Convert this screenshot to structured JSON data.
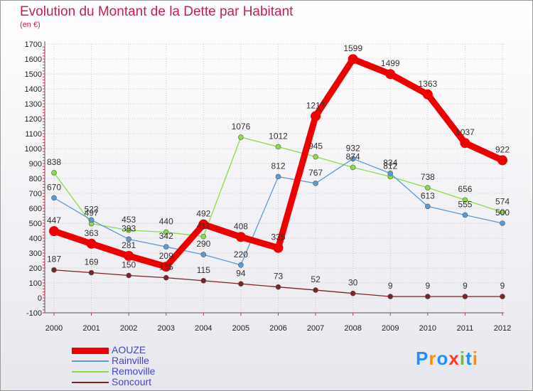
{
  "chart_data": {
    "type": "line",
    "title": "Evolution du Montant de la Dette par Habitant",
    "subtitle": "(en €)",
    "x": [
      "2000",
      "2001",
      "2002",
      "2003",
      "2004",
      "2005",
      "2006",
      "2007",
      "2008",
      "2009",
      "2010",
      "2011",
      "2012"
    ],
    "ylim": [
      -100,
      1700
    ],
    "yticks": [
      "-100",
      "0",
      "100",
      "200",
      "300",
      "400",
      "500",
      "600",
      "700",
      "800",
      "900",
      "1000",
      "1100",
      "1200",
      "1300",
      "1400",
      "1500",
      "1600",
      "1700"
    ],
    "grid": true,
    "legend_position": "bottom-left",
    "series": [
      {
        "name": "AOUZE",
        "color": "#ee0000",
        "values": [
          447,
          363,
          281,
          209,
          492,
          408,
          335,
          1217,
          1599,
          1499,
          1363,
          1037,
          922
        ],
        "labels": [
          "447",
          "363",
          "281",
          "209",
          "492",
          "408",
          "335",
          "1217",
          "1599",
          "1499",
          "1363",
          "1037",
          "922"
        ]
      },
      {
        "name": "Rainville",
        "color": "#5a9bd5",
        "values": [
          670,
          522,
          393,
          342,
          290,
          220,
          812,
          767,
          932,
          834,
          613,
          555,
          500
        ],
        "labels": [
          "670",
          "522",
          "393",
          "342",
          "290",
          "220",
          "812",
          "767",
          "932",
          "834",
          "613",
          "555",
          "500"
        ]
      },
      {
        "name": "Removille",
        "color": "#88dd44",
        "values": [
          838,
          497,
          453,
          440,
          411,
          1076,
          1012,
          945,
          874,
          812,
          738,
          656,
          574
        ],
        "labels": [
          "838",
          "497",
          "453",
          "440",
          "411",
          "1076",
          "1012",
          "945",
          "874",
          "812",
          "738",
          "656",
          "574"
        ]
      },
      {
        "name": "Soncourt",
        "color": "#7b2424",
        "values": [
          187,
          169,
          150,
          135,
          115,
          94,
          73,
          52,
          30,
          9,
          9,
          9,
          9
        ],
        "labels": [
          "187",
          "169",
          "150",
          "135",
          "115",
          "94",
          "73",
          "52",
          "30",
          "9",
          "9",
          "9",
          "9"
        ]
      }
    ]
  },
  "logo": {
    "letters": [
      "P",
      "r",
      "o",
      "x",
      "i",
      "t",
      "i"
    ],
    "colors": [
      "#1e90ff",
      "#ff8c00",
      "#1e90ff",
      "#ff3b1f",
      "#6ac22b",
      "#1e90ff",
      "#ff8c00"
    ]
  }
}
